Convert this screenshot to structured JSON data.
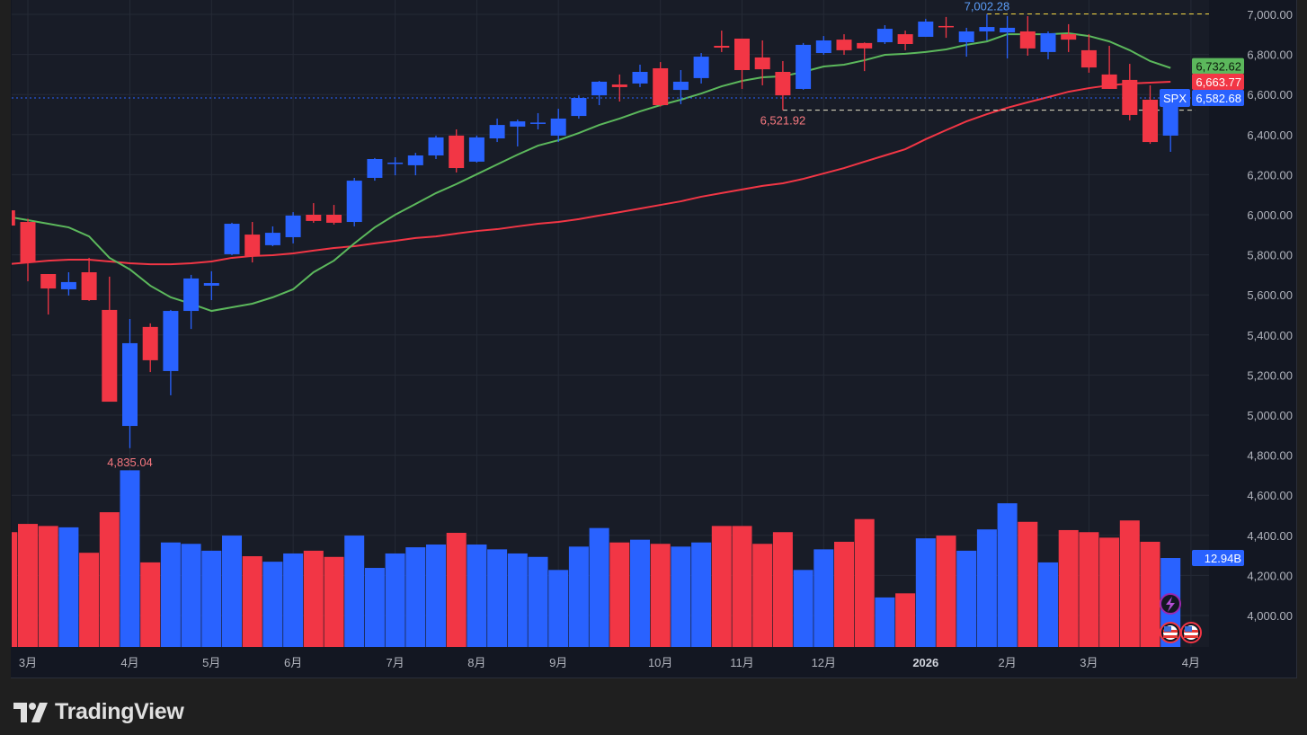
{
  "chart_data": {
    "type": "candlestick",
    "symbol": "SPX",
    "ylim": [
      3850,
      7050
    ],
    "y_ticks": [
      "7,000.00",
      "6,800.00",
      "6,600.00",
      "6,400.00",
      "6,200.00",
      "6,000.00",
      "5,800.00",
      "5,600.00",
      "5,400.00",
      "5,200.00",
      "5,000.00",
      "4,800.00",
      "4,600.00",
      "4,400.00",
      "4,200.00",
      "4,000.00"
    ],
    "y_tick_values": [
      7000,
      6800,
      6600,
      6400,
      6200,
      6000,
      5800,
      5600,
      5400,
      5200,
      5000,
      4800,
      4600,
      4400,
      4200,
      4000
    ],
    "x_ticks": [
      {
        "label": "3月",
        "index": 1,
        "bold": false
      },
      {
        "label": "4月",
        "index": 6,
        "bold": false
      },
      {
        "label": "5月",
        "index": 10,
        "bold": false
      },
      {
        "label": "6月",
        "index": 14,
        "bold": false
      },
      {
        "label": "7月",
        "index": 19,
        "bold": false
      },
      {
        "label": "8月",
        "index": 23,
        "bold": false
      },
      {
        "label": "9月",
        "index": 27,
        "bold": false
      },
      {
        "label": "10月",
        "index": 32,
        "bold": false
      },
      {
        "label": "11月",
        "index": 36,
        "bold": false
      },
      {
        "label": "12月",
        "index": 40,
        "bold": false
      },
      {
        "label": "2026",
        "index": 45,
        "bold": true
      },
      {
        "label": "2月",
        "index": 49,
        "bold": false
      },
      {
        "label": "3月",
        "index": 53,
        "bold": false
      },
      {
        "label": "4月",
        "index": 58,
        "bold": false
      }
    ],
    "ohlc_columns": [
      "open",
      "high",
      "low",
      "close"
    ],
    "ohlc": [
      [
        6022,
        6022,
        5946,
        5946
      ],
      [
        5964,
        5980,
        5668,
        5762
      ],
      [
        5704,
        5704,
        5502,
        5632
      ],
      [
        5628,
        5713,
        5597,
        5664
      ],
      [
        5713,
        5785,
        5570,
        5574
      ],
      [
        5525,
        5691,
        5067,
        5067
      ],
      [
        4946,
        5480,
        4835.04,
        5359
      ],
      [
        5440,
        5458,
        5215,
        5274
      ],
      [
        5220,
        5525,
        5099,
        5520
      ],
      [
        5520,
        5700,
        5430,
        5682
      ],
      [
        5646,
        5718,
        5574,
        5659
      ],
      [
        5803,
        5960,
        5798,
        5955
      ],
      [
        5901,
        5964,
        5762,
        5794
      ],
      [
        5848,
        5942,
        5843,
        5910
      ],
      [
        5888,
        6013,
        5857,
        5996
      ],
      [
        6000,
        6058,
        5960,
        5969
      ],
      [
        6000,
        6049,
        5951,
        5960
      ],
      [
        5964,
        6184,
        5942,
        6170
      ],
      [
        6184,
        6283,
        6170,
        6278
      ],
      [
        6255,
        6287,
        6197,
        6260
      ],
      [
        6247,
        6309,
        6197,
        6296
      ],
      [
        6296,
        6395,
        6278,
        6386
      ],
      [
        6395,
        6426,
        6211,
        6233
      ],
      [
        6265,
        6395,
        6260,
        6386
      ],
      [
        6381,
        6480,
        6363,
        6448
      ],
      [
        6440,
        6475,
        6341,
        6466
      ],
      [
        6457,
        6507,
        6426,
        6460
      ],
      [
        6395,
        6529,
        6363,
        6480
      ],
      [
        6493,
        6596,
        6480,
        6583
      ],
      [
        6596,
        6668,
        6547,
        6664
      ],
      [
        6650,
        6700,
        6565,
        6637
      ],
      [
        6655,
        6749,
        6637,
        6713
      ],
      [
        6731,
        6762,
        6540,
        6547
      ],
      [
        6623,
        6722,
        6552,
        6664
      ],
      [
        6682,
        6807,
        6655,
        6789
      ],
      [
        6843,
        6919,
        6812,
        6834
      ],
      [
        6879,
        6879,
        6628,
        6722
      ],
      [
        6785,
        6870,
        6646,
        6726
      ],
      [
        6713,
        6767,
        6521.92,
        6596
      ],
      [
        6628,
        6857,
        6624,
        6848
      ],
      [
        6807,
        6892,
        6798,
        6870
      ],
      [
        6874,
        6901,
        6798,
        6821
      ],
      [
        6857,
        6860,
        6717,
        6830
      ],
      [
        6861,
        6946,
        6852,
        6928
      ],
      [
        6901,
        6919,
        6821,
        6852
      ],
      [
        6888,
        6978,
        6888,
        6964
      ],
      [
        6942,
        6987,
        6883,
        6940
      ],
      [
        6861,
        6933,
        6789,
        6915
      ],
      [
        6915,
        7002.28,
        6870,
        6937
      ],
      [
        6910,
        6991,
        6780,
        6933
      ],
      [
        6915,
        6991,
        6794,
        6830
      ],
      [
        6812,
        6915,
        6776,
        6906
      ],
      [
        6901,
        6951,
        6812,
        6874
      ],
      [
        6821,
        6901,
        6709,
        6735
      ],
      [
        6700,
        6843,
        6628,
        6628
      ],
      [
        6673,
        6753,
        6471,
        6498
      ],
      [
        6574,
        6646,
        6354,
        6363
      ],
      [
        6395,
        6605,
        6314,
        6582.68
      ]
    ],
    "volume_unit": "B",
    "volume": [
      16.7,
      17.9,
      17.6,
      17.4,
      13.7,
      19.6,
      25.7,
      12.3,
      15.2,
      15.0,
      14.0,
      16.2,
      13.2,
      12.4,
      13.6,
      14.0,
      13.1,
      16.2,
      11.5,
      13.6,
      14.5,
      14.9,
      16.6,
      14.9,
      14.2,
      13.6,
      13.1,
      11.2,
      14.6,
      17.3,
      15.2,
      15.6,
      15.0,
      14.6,
      15.2,
      17.6,
      17.6,
      15.0,
      16.7,
      11.2,
      14.2,
      15.3,
      18.6,
      7.2,
      7.8,
      15.8,
      16.2,
      14.0,
      17.1,
      20.9,
      18.2,
      12.3,
      17.0,
      16.7,
      15.9,
      18.4,
      15.3,
      12.94
    ],
    "ma_fast": [
      5991,
      5973,
      5955,
      5937,
      5892,
      5785,
      5727,
      5646,
      5588,
      5556,
      5520,
      5538,
      5556,
      5588,
      5628,
      5713,
      5771,
      5857,
      5937,
      6000,
      6054,
      6108,
      6153,
      6202,
      6251,
      6300,
      6345,
      6372,
      6408,
      6448,
      6480,
      6516,
      6547,
      6574,
      6605,
      6641,
      6668,
      6686,
      6691,
      6713,
      6740,
      6749,
      6771,
      6798,
      6803,
      6812,
      6825,
      6848,
      6865,
      6901,
      6901,
      6901,
      6906,
      6892,
      6865,
      6821,
      6767,
      6732.62
    ],
    "ma_slow": [
      5753,
      5762,
      5771,
      5776,
      5776,
      5767,
      5758,
      5753,
      5753,
      5758,
      5767,
      5785,
      5794,
      5798,
      5807,
      5821,
      5834,
      5843,
      5857,
      5870,
      5884,
      5892,
      5906,
      5919,
      5928,
      5942,
      5955,
      5964,
      5978,
      5996,
      6013,
      6031,
      6049,
      6067,
      6090,
      6108,
      6126,
      6144,
      6157,
      6179,
      6206,
      6233,
      6265,
      6296,
      6327,
      6377,
      6422,
      6466,
      6502,
      6534,
      6561,
      6587,
      6614,
      6632,
      6646,
      6655,
      6659,
      6663.77
    ],
    "annotations": {
      "high_label": "7,002.28",
      "high_value": 7002.28,
      "high_index": 48,
      "low_label": "4,835.04",
      "low_value": 4835.04,
      "low_index": 6,
      "recent_low_label": "6,521.92",
      "recent_low_value": 6521.92,
      "recent_low_index": 38
    },
    "price_tags": {
      "ma_fast": "6,732.62",
      "ma_slow": "6,663.77",
      "symbol": "SPX",
      "last_price": "6,582.68",
      "last_price_value": 6582.68,
      "volume": "12.94B"
    },
    "grid": true,
    "colors": {
      "up": "#2962ff",
      "down": "#f23645",
      "ma_fast": "#5cb85c",
      "ma_slow": "#f23645",
      "background": "#181c27",
      "grid": "#252a36",
      "level_line": "#f5d742"
    }
  },
  "footer": {
    "brand": "TradingView"
  }
}
